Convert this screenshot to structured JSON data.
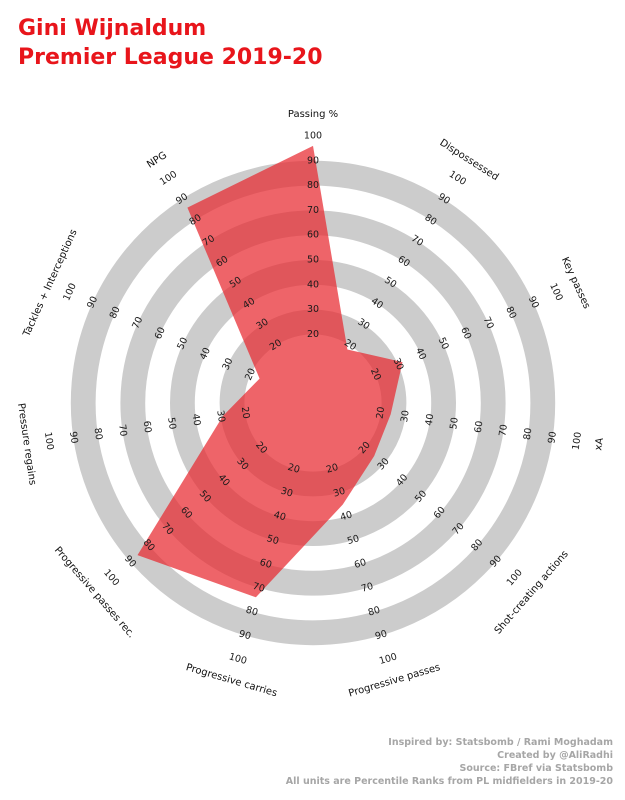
{
  "title": {
    "line1": "Gini Wijnaldum",
    "line2": "Premier League 2019-20"
  },
  "credits": [
    "Inspired by: Statsbomb / Rami Moghadam",
    "Created by @AliRadhi",
    "Source: FBref via Statsbomb",
    "All units are Percentile Ranks from PL midfielders in 2019-20"
  ],
  "colors": {
    "title": "#e8151b",
    "ring": "#cccccc",
    "fill": "#e8282f",
    "credits": "#a6a6a6"
  },
  "chart_data": {
    "type": "radar",
    "rmin": 0,
    "rmax": 100,
    "ring_ticks": [
      20,
      30,
      40,
      50,
      60,
      70,
      80,
      90,
      100
    ],
    "gray_bands": [
      [
        20,
        30
      ],
      [
        40,
        50
      ],
      [
        60,
        70
      ],
      [
        80,
        90
      ]
    ],
    "categories": [
      "Passing %",
      "Dispossessed",
      "Key passes",
      "xA",
      "Shot-creating actions",
      "Progressive passes",
      "Progressive carries",
      "Progressive passes rec.",
      "Pressure regains",
      "Tackles + Interceptions",
      "NPG"
    ],
    "values": [
      96,
      18,
      32,
      24,
      25,
      35,
      74,
      86,
      29,
      16,
      86
    ]
  }
}
